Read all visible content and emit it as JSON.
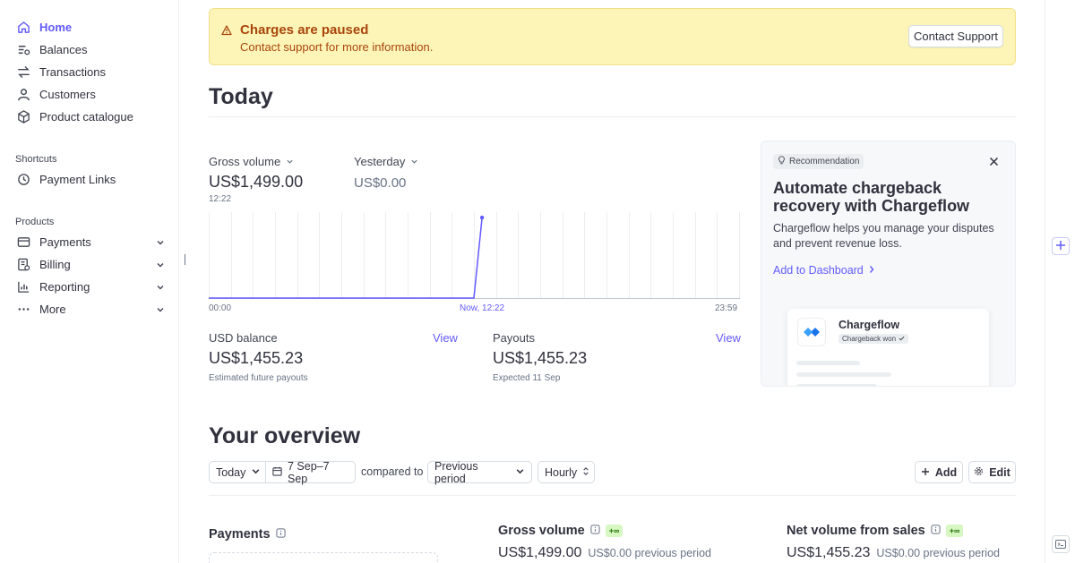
{
  "sidebar": {
    "nav": [
      {
        "label": "Home",
        "icon": "home-icon",
        "active": true
      },
      {
        "label": "Balances",
        "icon": "balances-icon"
      },
      {
        "label": "Transactions",
        "icon": "transactions-icon"
      },
      {
        "label": "Customers",
        "icon": "customers-icon"
      },
      {
        "label": "Product catalogue",
        "icon": "product-catalogue-icon"
      }
    ],
    "shortcuts_label": "Shortcuts",
    "shortcuts": [
      {
        "label": "Payment Links",
        "icon": "payment-links-icon"
      }
    ],
    "products_label": "Products",
    "products": [
      {
        "label": "Payments",
        "icon": "payments-icon"
      },
      {
        "label": "Billing",
        "icon": "billing-icon"
      },
      {
        "label": "Reporting",
        "icon": "reporting-icon"
      },
      {
        "label": "More",
        "icon": "more-icon"
      }
    ]
  },
  "banner": {
    "title": "Charges are paused",
    "subtitle": "Contact support for more information.",
    "button": "Contact Support"
  },
  "today": {
    "heading": "Today",
    "gross_volume_label": "Gross volume",
    "gross_volume_value": "US$1,499.00",
    "gross_volume_time": "12:22",
    "compare_label": "Yesterday",
    "compare_value": "US$0.00",
    "chart_start": "00:00",
    "chart_now": "Now, 12:22",
    "chart_end": "23:59",
    "usd_balance_label": "USD balance",
    "usd_balance_view": "View",
    "usd_balance_value": "US$1,455.23",
    "usd_balance_note": "Estimated future payouts",
    "payouts_label": "Payouts",
    "payouts_view": "View",
    "payouts_value": "US$1,455.23",
    "payouts_note": "Expected 11 Sep"
  },
  "chart_data": {
    "type": "line",
    "x_hours": [
      0,
      12.0,
      12.37
    ],
    "values": [
      0,
      0,
      1499.0
    ],
    "xlabel": "",
    "ylabel": "",
    "xlim": [
      0,
      24
    ],
    "ylim": [
      0,
      1600
    ],
    "grid": true,
    "accent": "#635bff"
  },
  "recommendation": {
    "tag": "Recommendation",
    "title": "Automate chargeback recovery with Chargeflow",
    "description": "Chargeflow helps you manage your disputes and prevent revenue loss.",
    "cta": "Add to Dashboard",
    "mock_name": "Chargeflow",
    "mock_badge": "Chargeback won"
  },
  "overview": {
    "heading": "Your overview",
    "range": "Today",
    "dates": "7 Sep–7 Sep",
    "compared_to": "compared to",
    "comparison": "Previous period",
    "interval": "Hourly",
    "add": "Add",
    "edit": "Edit",
    "payments_title": "Payments",
    "gross_title": "Gross volume",
    "gross_delta": "+∞",
    "gross_value": "US$1,499.00",
    "gross_prev": "US$0.00 previous period",
    "net_title": "Net volume from sales",
    "net_delta": "+∞",
    "net_value": "US$1,455.23",
    "net_prev": "US$0.00 previous period"
  },
  "colors": {
    "accent": "#635bff",
    "banner_bg": "#fcf5b7",
    "banner_text": "#a8450c",
    "positive_bg": "#d7f7c2"
  }
}
